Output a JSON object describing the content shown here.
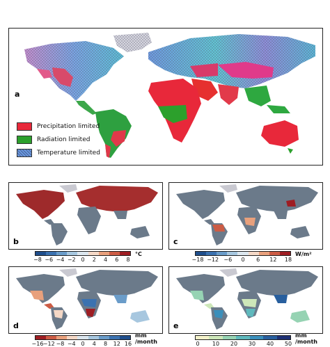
{
  "panels": {
    "a": {
      "label": "a"
    },
    "b": {
      "label": "b"
    },
    "c": {
      "label": "c"
    },
    "d": {
      "label": "d"
    },
    "e": {
      "label": "e"
    }
  },
  "legend": {
    "items": [
      {
        "label": "Precipitation limited",
        "color": "#e8283a"
      },
      {
        "label": "Radiation limited",
        "color": "#2ca02c"
      },
      {
        "label": "Temperature limited",
        "color": "#6a9ae0"
      }
    ]
  },
  "colorbars": {
    "b": {
      "ticks": [
        "−8",
        "−6",
        "−4",
        "−2",
        "0",
        "2",
        "4",
        "6",
        "8"
      ],
      "unit": "°C",
      "colors": [
        "#1f4e8c",
        "#3b72b0",
        "#6a9cc9",
        "#a7c7df",
        "#dbe6ee",
        "#f4d8c6",
        "#e8a07c",
        "#cc5c45",
        "#9e1d23"
      ]
    },
    "c": {
      "ticks": [
        "−18",
        "−12",
        "−6",
        "0",
        "6",
        "12",
        "18"
      ],
      "unit": "W/m²",
      "colors": [
        "#1f4e8c",
        "#3b72b0",
        "#6a9cc9",
        "#a7c7df",
        "#dbe6ee",
        "#f4d8c6",
        "#e8a07c",
        "#cc5c45",
        "#9e1d23"
      ]
    },
    "d": {
      "ticks": [
        "−16",
        "−12",
        "−8",
        "−4",
        "0",
        "4",
        "8",
        "12",
        "16"
      ],
      "unit_line1": "mm",
      "unit_line2": "/month",
      "colors": [
        "#9e1d23",
        "#cc5c45",
        "#e8a07c",
        "#f4d8c6",
        "#dbe6ee",
        "#a7c7df",
        "#6a9cc9",
        "#3b72b0",
        "#1f4e8c"
      ]
    },
    "e": {
      "ticks": [
        "0",
        "10",
        "20",
        "30",
        "40",
        "50"
      ],
      "unit_line1": "mm",
      "unit_line2": "/month",
      "colors": [
        "#f3f1c9",
        "#cde7b9",
        "#96d3b3",
        "#5fb9bd",
        "#3a8fbb",
        "#285f9e",
        "#1d2f74"
      ]
    }
  }
}
